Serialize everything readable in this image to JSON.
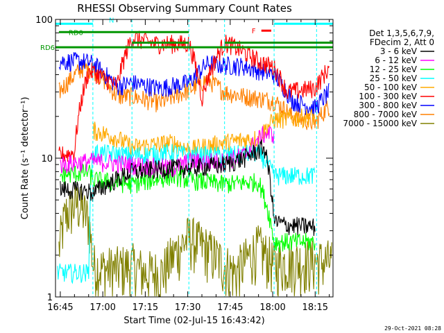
{
  "chart_data": {
    "type": "line",
    "title": "RHESSI Observing Summary Count Rates",
    "xlabel": "Start Time (02-Jul-15 16:43:42)",
    "ylabel": "Count Rate (s⁻¹ detector⁻¹)",
    "yscale": "log",
    "ylim": [
      1,
      100
    ],
    "xlim_minutes": [
      -1.7,
      96.3
    ],
    "x_ticks": [
      {
        "label": "16:45",
        "minute": 0
      },
      {
        "label": "17:00",
        "minute": 15
      },
      {
        "label": "17:15",
        "minute": 30
      },
      {
        "label": "17:30",
        "minute": 45
      },
      {
        "label": "17:45",
        "minute": 60
      },
      {
        "label": "18:00",
        "minute": 75
      },
      {
        "label": "18:15",
        "minute": 90
      }
    ],
    "y_ticks": [
      {
        "label": "1",
        "value": 1
      },
      {
        "label": "10",
        "value": 10
      },
      {
        "label": "100",
        "value": 100
      }
    ],
    "legend_header": [
      "Det 1,3,5,6,7,9,",
      "FDecim 2, Att 0"
    ],
    "legend_position": "right",
    "timestamp": "29-Oct-2021 08:28",
    "flags": [
      {
        "label": "RD0",
        "color": "#009600",
        "x_start": -0.5,
        "x_end": 45.4,
        "level": 81
      },
      {
        "label": "RD6",
        "color": "#009600",
        "x_start": -1.7,
        "x_end": 96.3,
        "level": 63
      },
      {
        "label": "N",
        "color": "#00ffff",
        "x_start": -1.7,
        "x_end": 11.5,
        "level": 93
      },
      {
        "label": "F",
        "color": "#ff0000",
        "x_start": 71.0,
        "x_end": 74.5,
        "level": 83
      }
    ],
    "extra_flag_segments": [
      {
        "color": "#009600",
        "x_start": 25.3,
        "x_end": 45.4,
        "level": 68
      },
      {
        "color": "#009600",
        "x_start": 58.0,
        "x_end": 96.3,
        "level": 68
      },
      {
        "color": "#00ffff",
        "x_start": 75.5,
        "x_end": 96.3,
        "level": 93
      }
    ],
    "gaps": [
      11.5,
      25.3,
      45.4,
      58.0,
      75.5,
      90.5
    ],
    "series": [
      {
        "name": "3 - 6 keV",
        "color": "#000000",
        "x": [
          0,
          10,
          11.5,
          25.3,
          40,
          45.4,
          58,
          65,
          72,
          75.5,
          80,
          90
        ],
        "values": [
          6.0,
          5.8,
          5.6,
          8.0,
          8.5,
          8.5,
          9.0,
          10.0,
          12.0,
          3.5,
          3.3,
          3.2
        ]
      },
      {
        "name": "6 - 12 keV",
        "color": "#ff00ff",
        "x": [
          0,
          10,
          11.5,
          25.3,
          40,
          45.4,
          58,
          65,
          72,
          75.5
        ],
        "values": [
          9.0,
          9.5,
          9.5,
          9.0,
          8.5,
          9.5,
          9.5,
          10.5,
          15.0,
          15.0
        ]
      },
      {
        "name": "12 - 25 keV",
        "color": "#00ff00",
        "x": [
          0,
          10,
          11.5,
          25.3,
          40,
          45.4,
          58,
          70,
          75.5,
          90
        ],
        "values": [
          7.5,
          8.0,
          7.0,
          6.5,
          7.5,
          7.0,
          6.5,
          6.8,
          2.5,
          2.5
        ]
      },
      {
        "name": "25 - 50 keV",
        "color": "#00ffff",
        "x": [
          -1,
          10,
          11.5,
          25.3,
          40,
          45.4,
          58,
          70,
          75.5,
          90
        ],
        "values": [
          1.5,
          1.5,
          11.0,
          10.5,
          11.0,
          10.5,
          10.5,
          11.0,
          7.5,
          7.5
        ]
      },
      {
        "name": "50 - 100 keV",
        "color": "#ffaa00",
        "x": [
          11.5,
          20,
          25.3,
          40,
          45.4,
          58,
          70,
          75.5,
          90
        ],
        "values": [
          16.0,
          14.0,
          12.0,
          13.0,
          11.5,
          13.0,
          14.0,
          19.0,
          20.0
        ]
      },
      {
        "name": "100 - 300 keV",
        "color": "#ff0000",
        "x": [
          -0.5,
          5,
          10,
          11.5,
          20,
          25.3,
          33,
          45.4,
          50,
          58,
          60,
          70,
          75.5,
          80,
          90,
          95
        ],
        "values": [
          10.5,
          11.0,
          42.0,
          42.0,
          33.0,
          74.0,
          67.0,
          67.0,
          27.0,
          68.0,
          66.0,
          50.0,
          45.0,
          30.0,
          32.0,
          45.0
        ]
      },
      {
        "name": "300 - 800 keV",
        "color": "#0000ff",
        "x": [
          -0.5,
          8,
          11.5,
          20,
          25.3,
          35,
          45.4,
          52,
          58,
          65,
          75.5,
          82,
          90,
          95
        ],
        "values": [
          50.0,
          50.0,
          48.0,
          33.0,
          35.0,
          32.0,
          35.0,
          48.0,
          47.0,
          46.0,
          40.0,
          26.0,
          23.0,
          30.0
        ]
      },
      {
        "name": "800 - 7000 keV",
        "color": "#ff8000",
        "x": [
          -0.5,
          8,
          11.5,
          20,
          25.3,
          35,
          45.4,
          52,
          58,
          65,
          75.5,
          82,
          90,
          95
        ],
        "values": [
          30.0,
          45.0,
          44.0,
          28.0,
          28.0,
          25.0,
          31.0,
          37.0,
          30.0,
          28.0,
          26.0,
          20.0,
          18.0,
          24.0
        ]
      },
      {
        "name": "7000 - 15000 keV",
        "color": "#808000",
        "x": [
          -0.5,
          2,
          6,
          10,
          11.5,
          15,
          20,
          25.3,
          30,
          36,
          45.4,
          52,
          58,
          62,
          70,
          75.5,
          80,
          90,
          96
        ],
        "values": [
          2.2,
          4.0,
          4.8,
          3.6,
          1.7,
          1.6,
          1.6,
          1.7,
          1.5,
          1.5,
          2.7,
          2.2,
          1.7,
          1.5,
          2.3,
          1.7,
          1.8,
          1.8,
          1.8
        ]
      }
    ]
  }
}
